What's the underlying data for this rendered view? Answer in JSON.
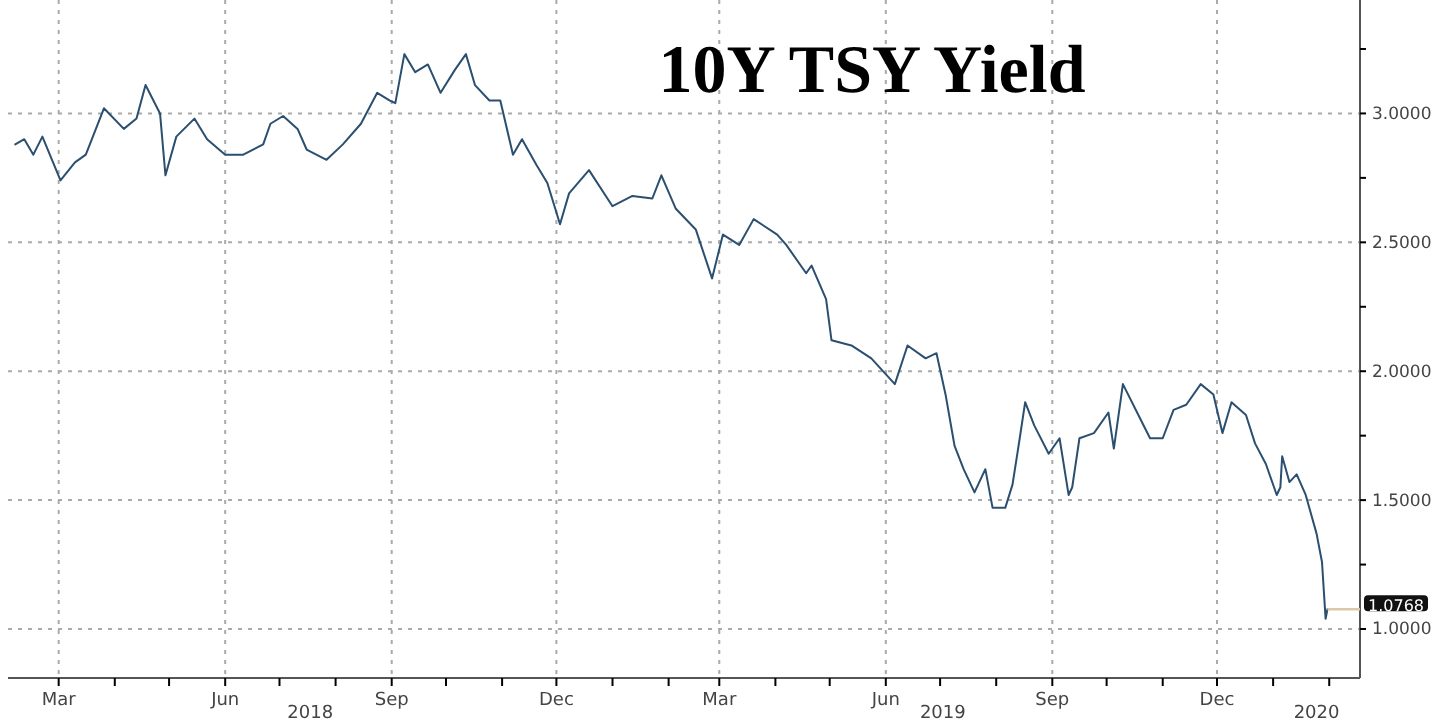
{
  "chart_data": {
    "type": "line",
    "title": "10Y TSY Yield",
    "x": [
      "2018-02-05",
      "2018-02-10",
      "2018-02-15",
      "2018-02-20",
      "2018-03-02",
      "2018-03-10",
      "2018-03-16",
      "2018-03-26",
      "2018-04-06",
      "2018-04-13",
      "2018-04-18",
      "2018-04-26",
      "2018-04-29",
      "2018-05-05",
      "2018-05-15",
      "2018-05-22",
      "2018-06-01",
      "2018-06-11",
      "2018-06-22",
      "2018-06-26",
      "2018-07-03",
      "2018-07-11",
      "2018-07-16",
      "2018-07-27",
      "2018-08-05",
      "2018-08-15",
      "2018-08-24",
      "2018-08-31",
      "2018-09-03",
      "2018-09-08",
      "2018-09-14",
      "2018-09-21",
      "2018-09-28",
      "2018-10-06",
      "2018-10-12",
      "2018-10-17",
      "2018-10-25",
      "2018-10-31",
      "2018-11-07",
      "2018-11-12",
      "2018-11-20",
      "2018-11-26",
      "2018-12-03",
      "2018-12-08",
      "2018-12-19",
      "2019-01-01",
      "2019-01-12",
      "2019-01-23",
      "2019-01-28",
      "2019-02-05",
      "2019-02-16",
      "2019-02-25",
      "2019-03-03",
      "2019-03-12",
      "2019-03-20",
      "2019-04-02",
      "2019-04-07",
      "2019-04-18",
      "2019-04-21",
      "2019-04-29",
      "2019-05-02",
      "2019-05-13",
      "2019-05-24",
      "2019-06-06",
      "2019-06-13",
      "2019-06-23",
      "2019-06-29",
      "2019-07-04",
      "2019-07-09",
      "2019-07-14",
      "2019-07-20",
      "2019-07-26",
      "2019-07-30",
      "2019-08-06",
      "2019-08-10",
      "2019-08-14",
      "2019-08-17",
      "2019-08-22",
      "2019-08-30",
      "2019-09-05",
      "2019-09-10",
      "2019-09-12",
      "2019-09-16",
      "2019-09-24",
      "2019-10-02",
      "2019-10-05",
      "2019-10-10",
      "2019-10-20",
      "2019-10-25",
      "2019-11-01",
      "2019-11-07",
      "2019-11-14",
      "2019-11-22",
      "2019-11-29",
      "2019-12-04",
      "2019-12-09",
      "2019-12-17",
      "2019-12-22",
      "2019-12-28",
      "2020-01-03",
      "2020-01-05",
      "2020-01-06",
      "2020-01-10",
      "2020-01-14",
      "2020-01-19",
      "2020-01-25",
      "2020-01-28",
      "2020-01-30",
      "2020-01-31"
    ],
    "series": [
      {
        "color": "#2b4f6e",
        "values": [
          2.88,
          2.9,
          2.84,
          2.91,
          2.74,
          2.81,
          2.84,
          3.02,
          2.94,
          2.98,
          3.11,
          3.0,
          2.76,
          2.91,
          2.98,
          2.9,
          2.84,
          2.84,
          2.88,
          2.96,
          2.99,
          2.94,
          2.86,
          2.82,
          2.88,
          2.96,
          3.08,
          3.05,
          3.04,
          3.23,
          3.16,
          3.19,
          3.08,
          3.17,
          3.23,
          3.11,
          3.05,
          3.05,
          2.84,
          2.9,
          2.8,
          2.73,
          2.57,
          2.69,
          2.78,
          2.64,
          2.68,
          2.67,
          2.76,
          2.63,
          2.55,
          2.36,
          2.53,
          2.49,
          2.59,
          2.53,
          2.49,
          2.38,
          2.41,
          2.28,
          2.12,
          2.1,
          2.05,
          1.95,
          2.1,
          2.05,
          2.07,
          1.91,
          1.71,
          1.62,
          1.53,
          1.62,
          1.47,
          1.47,
          1.56,
          1.74,
          1.88,
          1.79,
          1.68,
          1.74,
          1.52,
          1.55,
          1.74,
          1.76,
          1.84,
          1.7,
          1.95,
          1.81,
          1.74,
          1.74,
          1.85,
          1.87,
          1.95,
          1.91,
          1.76,
          1.88,
          1.83,
          1.72,
          1.64,
          1.52,
          1.55,
          1.67,
          1.57,
          1.6,
          1.52,
          1.37,
          1.26,
          1.04,
          1.0768
        ]
      }
    ],
    "xlim": [
      "2018-02-01",
      "2020-02-18"
    ],
    "xticks": [
      {
        "value": "2018-03-01",
        "label": "Mar"
      },
      {
        "value": "2018-04-01",
        "label": null
      },
      {
        "value": "2018-05-01",
        "label": null
      },
      {
        "value": "2018-06-01",
        "label": "Jun"
      },
      {
        "value": "2018-07-01",
        "label": null
      },
      {
        "value": "2018-08-01",
        "label": null
      },
      {
        "value": "2018-09-01",
        "label": "Sep"
      },
      {
        "value": "2018-10-01",
        "label": null
      },
      {
        "value": "2018-11-01",
        "label": null
      },
      {
        "value": "2018-12-01",
        "label": "Dec"
      },
      {
        "value": "2019-01-01",
        "label": null
      },
      {
        "value": "2019-02-01",
        "label": null
      },
      {
        "value": "2019-03-01",
        "label": "Mar"
      },
      {
        "value": "2019-04-01",
        "label": null
      },
      {
        "value": "2019-05-01",
        "label": null
      },
      {
        "value": "2019-06-01",
        "label": "Jun"
      },
      {
        "value": "2019-07-01",
        "label": null
      },
      {
        "value": "2019-08-01",
        "label": null
      },
      {
        "value": "2019-09-01",
        "label": "Sep"
      },
      {
        "value": "2019-10-01",
        "label": null
      },
      {
        "value": "2019-11-01",
        "label": null
      },
      {
        "value": "2019-12-01",
        "label": "Dec"
      },
      {
        "value": "2020-01-01",
        "label": null
      },
      {
        "value": "2020-02-01",
        "label": null
      }
    ],
    "ylim": [
      0.81,
      3.44
    ],
    "yticks": [
      {
        "value": 1,
        "label": "1.0000"
      },
      {
        "value": 1.25,
        "label": null
      },
      {
        "value": 1.5,
        "label": "1.5000"
      },
      {
        "value": 1.75,
        "label": null
      },
      {
        "value": 2,
        "label": "2.0000"
      },
      {
        "value": 2.25,
        "label": null
      },
      {
        "value": 2.5,
        "label": "2.5000"
      },
      {
        "value": 2.75,
        "label": null
      },
      {
        "value": 3,
        "label": "3.0000"
      },
      {
        "value": 3.25,
        "label": null
      }
    ],
    "grid": true,
    "annotations": [
      {
        "text": "1.0768",
        "x": "2020-01-31",
        "y": 1.0768
      },
      "2018",
      "2019",
      "2020"
    ]
  }
}
